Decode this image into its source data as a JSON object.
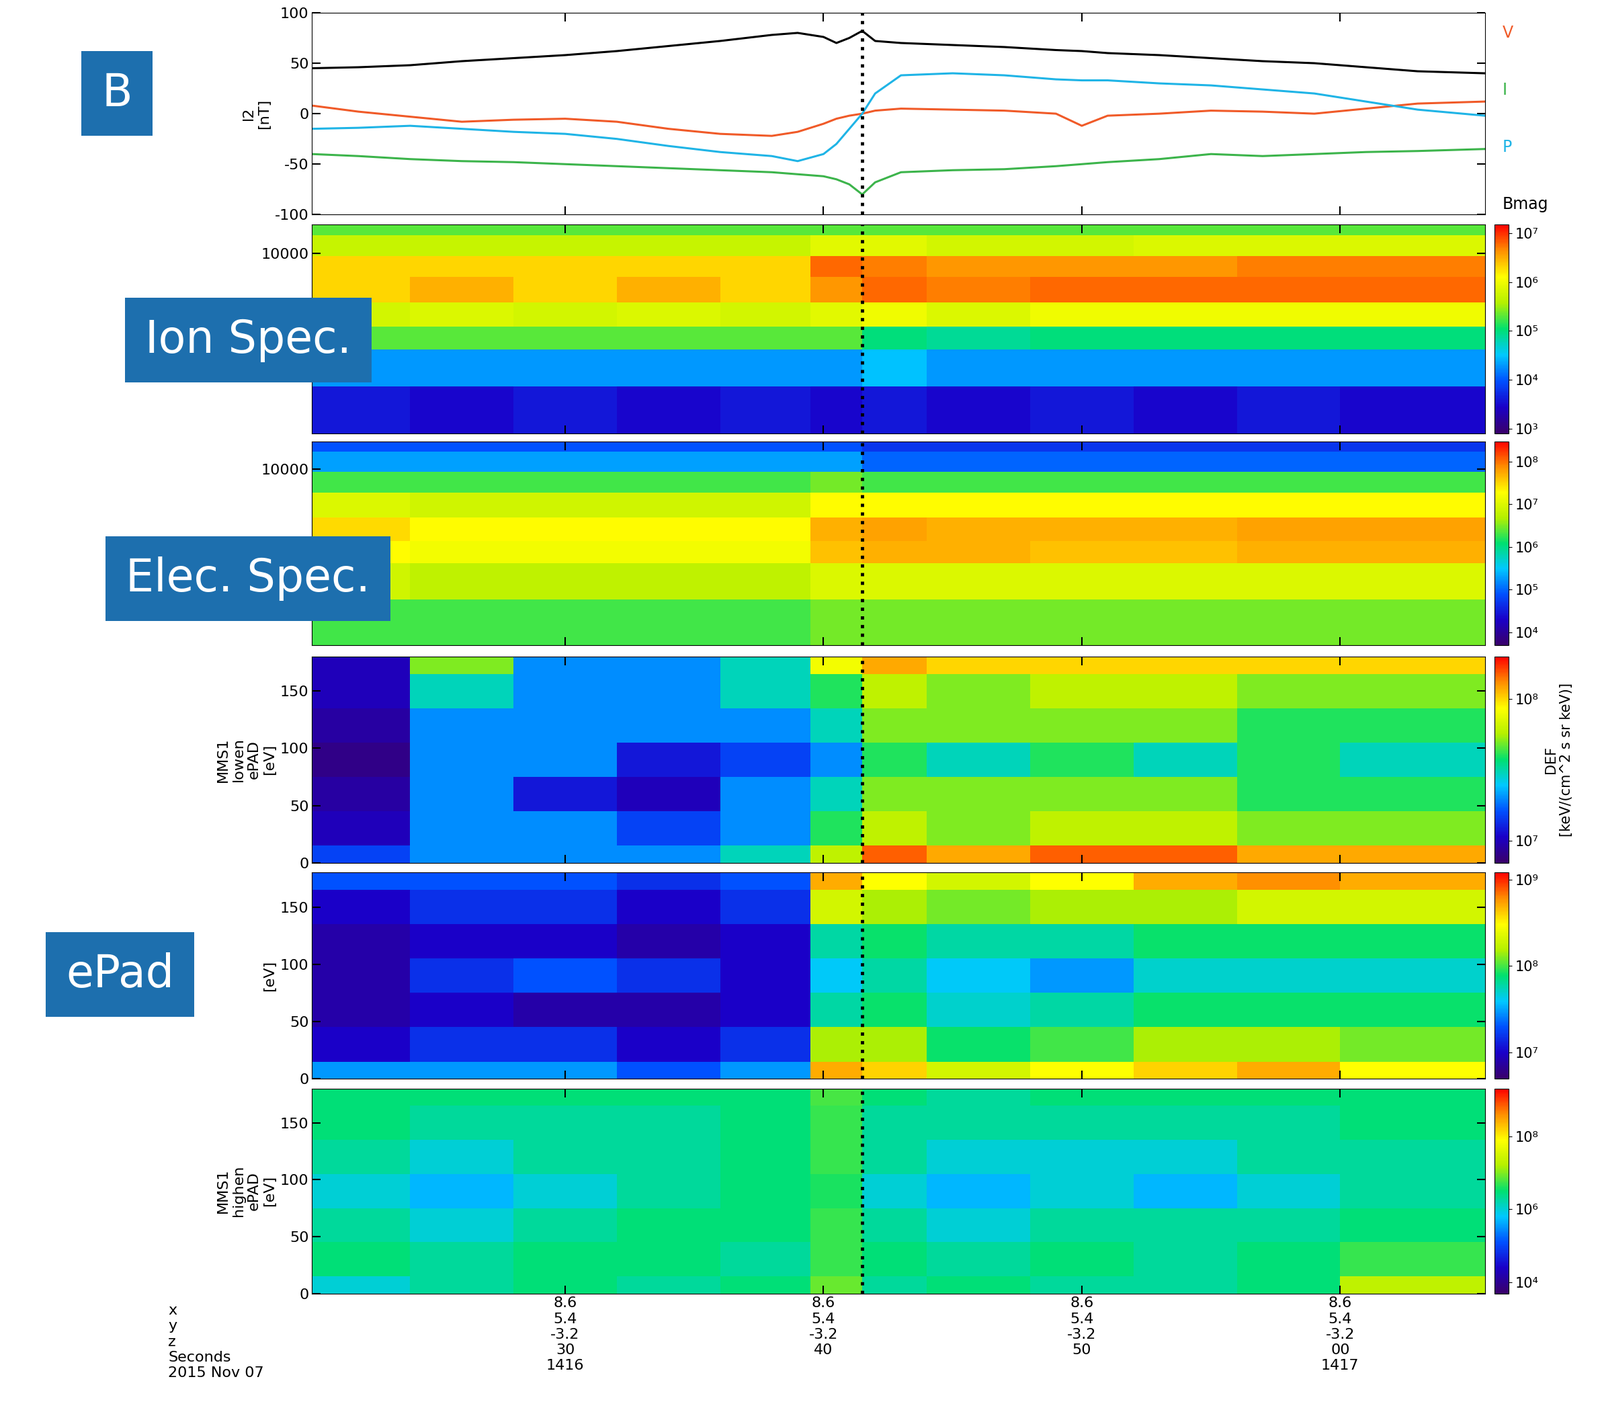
{
  "chart_data": [
    {
      "type": "line",
      "annotation": "B",
      "ylabel": "l2\n[nT]",
      "xlim": [
        20.2,
        65.6
      ],
      "xticks": [
        30,
        40,
        50,
        60
      ],
      "tick_labels": "y",
      "ylim": [
        -100,
        100
      ],
      "yticks": [
        -100,
        -50,
        0,
        50,
        100
      ],
      "x": [
        20.2,
        22,
        24,
        26,
        28,
        30,
        32,
        34,
        36,
        38,
        39,
        40,
        40.5,
        41,
        41.5,
        42,
        43,
        45,
        47,
        49,
        50,
        51,
        53,
        55,
        57,
        59,
        61,
        63,
        65.6
      ],
      "series": [
        {
          "name": "V",
          "color": "#f05a28",
          "values": [
            8,
            2,
            -3,
            -8,
            -6,
            -5,
            -8,
            -15,
            -20,
            -22,
            -18,
            -10,
            -5,
            -2,
            0,
            3,
            5,
            4,
            3,
            0,
            -12,
            -2,
            0,
            3,
            2,
            0,
            5,
            10,
            12
          ]
        },
        {
          "name": "I",
          "color": "#3cb44b",
          "values": [
            -40,
            -42,
            -45,
            -47,
            -48,
            -50,
            -52,
            -54,
            -56,
            -58,
            -60,
            -62,
            -65,
            -70,
            -80,
            -68,
            -58,
            -56,
            -55,
            -52,
            -50,
            -48,
            -45,
            -40,
            -42,
            -40,
            -38,
            -37,
            -35
          ]
        },
        {
          "name": "P",
          "color": "#1fb4e6",
          "values": [
            -15,
            -14,
            -12,
            -15,
            -18,
            -20,
            -25,
            -32,
            -38,
            -42,
            -47,
            -40,
            -30,
            -15,
            0,
            20,
            38,
            40,
            38,
            34,
            33,
            33,
            30,
            28,
            24,
            20,
            12,
            4,
            -2
          ]
        },
        {
          "name": "Bmag",
          "color": "#000000",
          "values": [
            45,
            46,
            48,
            52,
            55,
            58,
            62,
            67,
            72,
            78,
            80,
            76,
            70,
            75,
            82,
            72,
            70,
            68,
            66,
            63,
            62,
            60,
            58,
            55,
            52,
            50,
            46,
            42,
            40
          ]
        }
      ]
    },
    {
      "type": "heatmap",
      "annotation": "Ion Spec.",
      "log": "y",
      "xlim": [
        20.2,
        65.6
      ],
      "xticks": [
        30,
        40,
        50,
        60
      ],
      "tick_labels": "y",
      "ylim": [
        10,
        30000
      ],
      "yticks": [
        10000
      ],
      "time_bins": [
        20.2,
        24,
        28,
        32,
        36,
        39.5,
        41.5,
        44,
        48,
        52,
        56,
        60,
        65.6
      ],
      "y_bins": [
        10,
        60,
        250,
        600,
        1500,
        4000,
        9000,
        20000,
        30000
      ],
      "cells": [
        [
          4000.0,
          3000.0,
          4000.0,
          3000.0,
          4000.0,
          3000.0,
          4000.0,
          3000.0,
          4000.0,
          3000.0,
          4000.0,
          3000.0
        ],
        [
          20000.0,
          20000.0,
          20000.0,
          20000.0,
          20000.0,
          20000.0,
          30000.0,
          20000.0,
          20000.0,
          20000.0,
          20000.0,
          20000.0
        ],
        [
          200000.0,
          200000.0,
          200000.0,
          200000.0,
          200000.0,
          200000.0,
          100000.0,
          80000.0,
          100000.0,
          100000.0,
          100000.0,
          100000.0
        ],
        [
          600000.0,
          700000.0,
          600000.0,
          700000.0,
          600000.0,
          800000.0,
          1000000.0,
          700000.0,
          1000000.0,
          1000000.0,
          1000000.0,
          1000000.0
        ],
        [
          2000000.0,
          3000000.0,
          2000000.0,
          3000000.0,
          2000000.0,
          4000000.0,
          6000000.0,
          5000000.0,
          6000000.0,
          6000000.0,
          6000000.0,
          6000000.0
        ],
        [
          2000000.0,
          2000000.0,
          2000000.0,
          2000000.0,
          2000000.0,
          6000000.0,
          5000000.0,
          4000000.0,
          4000000.0,
          4000000.0,
          5000000.0,
          5000000.0
        ],
        [
          500000.0,
          500000.0,
          500000.0,
          500000.0,
          500000.0,
          800000.0,
          800000.0,
          600000.0,
          600000.0,
          700000.0,
          700000.0,
          700000.0
        ],
        [
          200000.0,
          200000.0,
          200000.0,
          200000.0,
          200000.0,
          200000.0,
          200000.0,
          200000.0,
          200000.0,
          200000.0,
          200000.0,
          200000.0
        ]
      ],
      "colorbar_range": [
        800,
        15000000.0
      ],
      "colorbar_ticks": [
        {
          "value": 1000,
          "label": "10³"
        },
        {
          "value": 10000,
          "label": "10⁴"
        },
        {
          "value": 100000,
          "label": "10⁵"
        },
        {
          "value": 1000000,
          "label": "10⁶"
        },
        {
          "value": 10000000,
          "label": "10⁷"
        }
      ]
    },
    {
      "type": "heatmap",
      "annotation": "Elec. Spec.",
      "log": "y",
      "xlim": [
        20.2,
        65.6
      ],
      "xticks": [
        30,
        40,
        50,
        60
      ],
      "tick_labels": "y",
      "ylim": [
        10,
        30000
      ],
      "yticks": [
        10000
      ],
      "time_bins": [
        20.2,
        24,
        28,
        32,
        36,
        39.5,
        41.5,
        44,
        48,
        52,
        56,
        60,
        65.6
      ],
      "y_bins": [
        10,
        60,
        250,
        600,
        1500,
        4000,
        9000,
        20000,
        30000
      ],
      "cells": [
        [
          2000000.0,
          2000000.0,
          2000000.0,
          2000000.0,
          2000000.0,
          3000000.0,
          3000000.0,
          3000000.0,
          3000000.0,
          3000000.0,
          3000000.0,
          3000000.0
        ],
        [
          8000000.0,
          6000000.0,
          6000000.0,
          6000000.0,
          6000000.0,
          10000000.0,
          10000000.0,
          10000000.0,
          10000000.0,
          10000000.0,
          10000000.0,
          10000000.0
        ],
        [
          20000000.0,
          15000000.0,
          15000000.0,
          15000000.0,
          15000000.0,
          40000000.0,
          50000000.0,
          50000000.0,
          40000000.0,
          40000000.0,
          50000000.0,
          50000000.0
        ],
        [
          30000000.0,
          20000000.0,
          20000000.0,
          20000000.0,
          20000000.0,
          50000000.0,
          60000000.0,
          50000000.0,
          50000000.0,
          50000000.0,
          60000000.0,
          60000000.0
        ],
        [
          10000000.0,
          8000000.0,
          8000000.0,
          8000000.0,
          8000000.0,
          20000000.0,
          20000000.0,
          20000000.0,
          20000000.0,
          20000000.0,
          20000000.0,
          20000000.0
        ],
        [
          2000000.0,
          2000000.0,
          2000000.0,
          2000000.0,
          2000000.0,
          3000000.0,
          2000000.0,
          2000000.0,
          2000000.0,
          2000000.0,
          2000000.0,
          2000000.0
        ],
        [
          200000.0,
          200000.0,
          200000.0,
          200000.0,
          200000.0,
          200000.0,
          100000.0,
          100000.0,
          100000.0,
          100000.0,
          100000.0,
          100000.0
        ],
        [
          80000.0,
          80000.0,
          80000.0,
          80000.0,
          80000.0,
          80000.0,
          50000.0,
          50000.0,
          50000.0,
          50000.0,
          50000.0,
          50000.0
        ]
      ],
      "colorbar_range": [
        5000,
        300000000.0
      ],
      "colorbar_ticks": [
        {
          "value": 10000,
          "label": "10⁴"
        },
        {
          "value": 100000,
          "label": "10⁵"
        },
        {
          "value": 1000000,
          "label": "10⁶"
        },
        {
          "value": 10000000,
          "label": "10⁷"
        },
        {
          "value": 100000000,
          "label": "10⁸"
        }
      ]
    },
    {
      "type": "heatmap",
      "ylabel": "MMS1\nlowen\nePAD\n[eV]",
      "xlim": [
        20.2,
        65.6
      ],
      "xticks": [
        30,
        40,
        50,
        60
      ],
      "tick_labels": "y",
      "ylim": [
        0,
        180
      ],
      "yticks": [
        0,
        50,
        100,
        150
      ],
      "time_bins": [
        20.2,
        24,
        28,
        32,
        36,
        39.5,
        41.5,
        44,
        48,
        52,
        56,
        60,
        65.6
      ],
      "y_bins": [
        0,
        15,
        45,
        75,
        105,
        135,
        165,
        180
      ],
      "cells": [
        [
          15000000.0,
          20000000.0,
          20000000.0,
          20000000.0,
          30000000.0,
          60000000.0,
          150000000.0,
          120000000.0,
          150000000.0,
          150000000.0,
          120000000.0,
          120000000.0
        ],
        [
          10000000.0,
          20000000.0,
          20000000.0,
          15000000.0,
          20000000.0,
          40000000.0,
          60000000.0,
          50000000.0,
          60000000.0,
          60000000.0,
          50000000.0,
          50000000.0
        ],
        [
          9000000.0,
          20000000.0,
          12000000.0,
          10000000.0,
          20000000.0,
          30000000.0,
          50000000.0,
          50000000.0,
          50000000.0,
          50000000.0,
          40000000.0,
          40000000.0
        ],
        [
          8000000.0,
          20000000.0,
          20000000.0,
          12000000.0,
          15000000.0,
          20000000.0,
          40000000.0,
          30000000.0,
          40000000.0,
          30000000.0,
          40000000.0,
          30000000.0
        ],
        [
          9000000.0,
          20000000.0,
          20000000.0,
          20000000.0,
          20000000.0,
          30000000.0,
          50000000.0,
          50000000.0,
          50000000.0,
          50000000.0,
          40000000.0,
          40000000.0
        ],
        [
          10000000.0,
          30000000.0,
          20000000.0,
          20000000.0,
          30000000.0,
          40000000.0,
          60000000.0,
          50000000.0,
          60000000.0,
          60000000.0,
          50000000.0,
          50000000.0
        ],
        [
          10000000.0,
          50000000.0,
          20000000.0,
          20000000.0,
          30000000.0,
          80000000.0,
          120000000.0,
          100000000.0,
          100000000.0,
          100000000.0,
          100000000.0,
          100000000.0
        ]
      ],
      "colorbar_range": [
        7000000.0,
        200000000.0
      ],
      "colorbar_ticks": [
        {
          "value": 10000000,
          "label": "10⁷"
        },
        {
          "value": 100000000,
          "label": "10⁸"
        }
      ],
      "colorbar_label": "DEF\n[keV/(cm^2 s sr keV)]"
    },
    {
      "type": "heatmap",
      "annotation": "ePad",
      "ylabel": "[eV]",
      "xlim": [
        20.2,
        65.6
      ],
      "xticks": [
        30,
        40,
        50,
        60
      ],
      "tick_labels": "y",
      "ylim": [
        0,
        180
      ],
      "yticks": [
        0,
        50,
        100,
        150
      ],
      "time_bins": [
        20.2,
        24,
        28,
        32,
        36,
        39.5,
        41.5,
        44,
        48,
        52,
        56,
        60,
        65.6
      ],
      "y_bins": [
        0,
        15,
        45,
        75,
        105,
        135,
        165,
        180
      ],
      "cells": [
        [
          30000000.0,
          30000000.0,
          30000000.0,
          20000000.0,
          30000000.0,
          500000000.0,
          400000000.0,
          200000000.0,
          300000000.0,
          400000000.0,
          500000000.0,
          300000000.0
        ],
        [
          10000000.0,
          15000000.0,
          15000000.0,
          10000000.0,
          15000000.0,
          150000000.0,
          150000000.0,
          80000000.0,
          100000000.0,
          150000000.0,
          150000000.0,
          120000000.0
        ],
        [
          8000000.0,
          10000000.0,
          8000000.0,
          8000000.0,
          10000000.0,
          60000000.0,
          80000000.0,
          50000000.0,
          60000000.0,
          80000000.0,
          80000000.0,
          80000000.0
        ],
        [
          8000000.0,
          15000000.0,
          20000000.0,
          15000000.0,
          10000000.0,
          40000000.0,
          60000000.0,
          40000000.0,
          30000000.0,
          50000000.0,
          50000000.0,
          50000000.0
        ],
        [
          8000000.0,
          10000000.0,
          10000000.0,
          8000000.0,
          10000000.0,
          60000000.0,
          80000000.0,
          60000000.0,
          60000000.0,
          80000000.0,
          80000000.0,
          80000000.0
        ],
        [
          10000000.0,
          15000000.0,
          15000000.0,
          10000000.0,
          15000000.0,
          200000000.0,
          150000000.0,
          120000000.0,
          150000000.0,
          150000000.0,
          200000000.0,
          200000000.0
        ],
        [
          20000000.0,
          20000000.0,
          20000000.0,
          15000000.0,
          20000000.0,
          500000000.0,
          300000000.0,
          200000000.0,
          300000000.0,
          500000000.0,
          600000000.0,
          500000000.0
        ]
      ],
      "colorbar_range": [
        5000000.0,
        1200000000.0
      ],
      "colorbar_ticks": [
        {
          "value": 10000000,
          "label": "10⁷"
        },
        {
          "value": 100000000,
          "label": "10⁸"
        },
        {
          "value": 1000000000,
          "label": "10⁹"
        }
      ]
    },
    {
      "type": "heatmap",
      "ylabel": "MMS1\nhighen\nePAD\n[eV]",
      "xlim": [
        20.2,
        65.6
      ],
      "xticks": [
        {
          "value": 30,
          "label": "8.6\n5.4\n-3.2\n30\n1416"
        },
        {
          "value": 40,
          "label": "8.6\n5.4\n-3.2\n40"
        },
        {
          "value": 50,
          "label": "8.6\n5.4\n-3.2\n50"
        },
        {
          "value": 60,
          "label": "8.6\n5.4\n-3.2\n00\n1417"
        }
      ],
      "ylim": [
        0,
        180
      ],
      "yticks": [
        0,
        50,
        100,
        150
      ],
      "time_bins": [
        20.2,
        24,
        28,
        32,
        36,
        39.5,
        41.5,
        44,
        48,
        52,
        56,
        60,
        65.6
      ],
      "y_bins": [
        0,
        15,
        45,
        75,
        105,
        135,
        165,
        180
      ],
      "cells": [
        [
          1000000.0,
          2000000.0,
          3000000.0,
          2000000.0,
          3000000.0,
          8000000.0,
          2000000.0,
          3000000.0,
          2000000.0,
          2000000.0,
          3000000.0,
          20000000.0
        ],
        [
          3000000.0,
          2000000.0,
          3000000.0,
          3000000.0,
          2000000.0,
          5000000.0,
          3000000.0,
          2000000.0,
          3000000.0,
          2000000.0,
          3000000.0,
          5000000.0
        ],
        [
          2000000.0,
          1000000.0,
          2000000.0,
          3000000.0,
          3000000.0,
          5000000.0,
          2000000.0,
          1000000.0,
          2000000.0,
          2000000.0,
          2000000.0,
          3000000.0
        ],
        [
          1000000.0,
          500000.0,
          1000000.0,
          2000000.0,
          3000000.0,
          4000000.0,
          1000000.0,
          500000.0,
          1000000.0,
          500000.0,
          1000000.0,
          2000000.0
        ],
        [
          2000000.0,
          1000000.0,
          2000000.0,
          2000000.0,
          3000000.0,
          5000000.0,
          2000000.0,
          1000000.0,
          1000000.0,
          1000000.0,
          2000000.0,
          2000000.0
        ],
        [
          3000000.0,
          2000000.0,
          2000000.0,
          2000000.0,
          3000000.0,
          5000000.0,
          2000000.0,
          2000000.0,
          2000000.0,
          2000000.0,
          2000000.0,
          3000000.0
        ],
        [
          3000000.0,
          3000000.0,
          3000000.0,
          3000000.0,
          3000000.0,
          6000000.0,
          3000000.0,
          2000000.0,
          3000000.0,
          3000000.0,
          3000000.0,
          3000000.0
        ]
      ],
      "colorbar_range": [
        5000,
        2000000000.0
      ],
      "colorbar_ticks": [
        {
          "value": 10000,
          "label": "10⁴"
        },
        {
          "value": 1000000,
          "label": "10⁶"
        },
        {
          "value": 100000000,
          "label": "10⁸"
        }
      ]
    }
  ],
  "event_time": 41.5,
  "footer_label": "x\ny\nz\nSeconds\n2015 Nov 07"
}
